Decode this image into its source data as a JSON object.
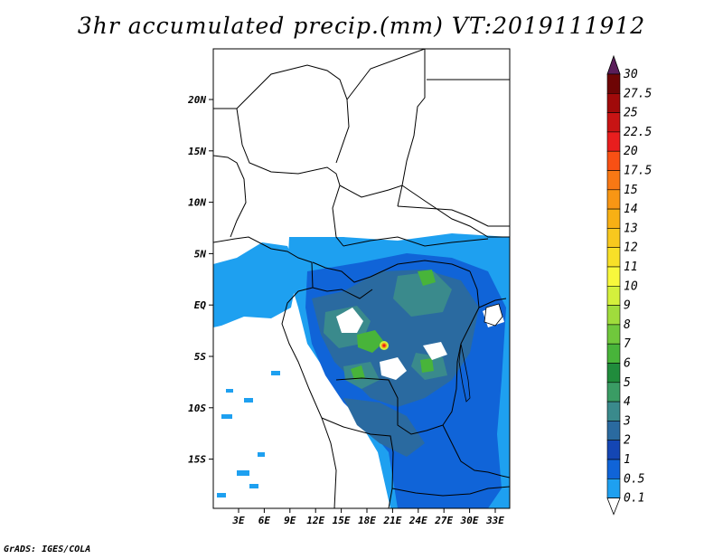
{
  "title": "3hr accumulated precip.(mm) VT:2019111912",
  "credit": "GrADS: IGES/COLA",
  "map": {
    "lon_labels": [
      "3E",
      "6E",
      "9E",
      "12E",
      "15E",
      "18E",
      "21E",
      "24E",
      "27E",
      "30E",
      "33E"
    ],
    "lat_labels": [
      "20N",
      "15N",
      "10N",
      "5N",
      "EQ",
      "5S",
      "10S",
      "15S"
    ]
  },
  "colorbar": {
    "labels": [
      "0.1",
      "0.5",
      "1",
      "2",
      "3",
      "4",
      "5",
      "6",
      "7",
      "8",
      "9",
      "10",
      "11",
      "12",
      "13",
      "14",
      "15",
      "17.5",
      "20",
      "22.5",
      "25",
      "27.5",
      "30"
    ],
    "colors": [
      "#ffffff",
      "#1ea0f0",
      "#1064d8",
      "#1446b4",
      "#2a6aa0",
      "#3a8a8c",
      "#3a9c64",
      "#208c3c",
      "#48b43a",
      "#70c83c",
      "#a0dc3c",
      "#d4f03c",
      "#f8f83c",
      "#f8e028",
      "#f8c81e",
      "#f8b014",
      "#f89614",
      "#f87814",
      "#f85014",
      "#e81e1e",
      "#c81414",
      "#a00a0a",
      "#6e0505",
      "#5a1e5a"
    ]
  },
  "precip_colors": {
    "light": "#1ea0f0",
    "moderate": "#1064d8",
    "heavy": "#2a6aa0",
    "teal": "#3a8a8c",
    "green": "#48b43a",
    "yellow": "#d4f03c",
    "orange": "#f89614",
    "red": "#e81e1e"
  }
}
